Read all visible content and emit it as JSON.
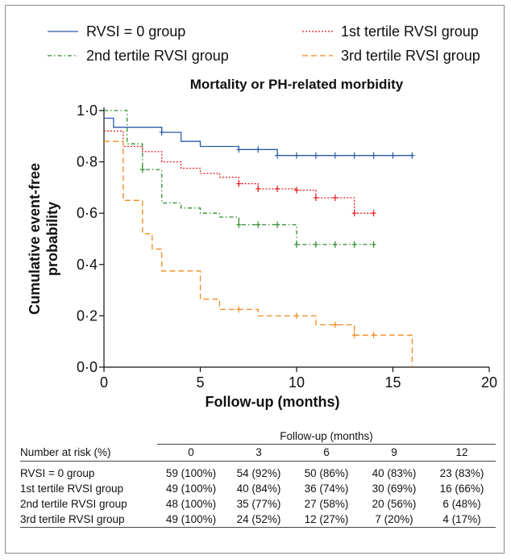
{
  "legend": [
    {
      "label": "RVSI = 0 group",
      "color": "#2a5aa8",
      "dash": "solid"
    },
    {
      "label": "1st tertile RVSI group",
      "color": "#e41a1c",
      "dash": "dotted"
    },
    {
      "label": "2nd tertile RVSI group",
      "color": "#2e8b2e",
      "dash": "dashdot"
    },
    {
      "label": "3rd tertile RVSI group",
      "color": "#f08a1e",
      "dash": "dashed"
    }
  ],
  "chart_data": {
    "type": "line",
    "title": "Mortality or PH-related morbidity",
    "xlabel": "Follow-up (months)",
    "ylabel": "Cumulative event-free probability",
    "xlim": [
      0,
      20
    ],
    "ylim": [
      0,
      1
    ],
    "x_ticks": [
      0,
      5,
      10,
      15,
      20
    ],
    "x_tick_labels": [
      "0",
      "5",
      "10",
      "15",
      "20"
    ],
    "y_ticks": [
      0,
      0.2,
      0.4,
      0.6,
      0.8,
      1.0
    ],
    "y_tick_labels": [
      "0·0",
      "0·2",
      "0·4",
      "0·6",
      "0·8",
      "1·0"
    ],
    "grid": false,
    "legend_position": "top",
    "series": [
      {
        "name": "RVSI = 0 group",
        "color": "#2a5aa8",
        "dash": "solid",
        "steps": [
          [
            0,
            0.97
          ],
          [
            0.5,
            0.97
          ],
          [
            0.5,
            0.935
          ],
          [
            3,
            0.935
          ],
          [
            3,
            0.915
          ],
          [
            4,
            0.915
          ],
          [
            4,
            0.88
          ],
          [
            5,
            0.88
          ],
          [
            5,
            0.86
          ],
          [
            7,
            0.86
          ],
          [
            7,
            0.848
          ],
          [
            9,
            0.848
          ],
          [
            9,
            0.825
          ],
          [
            16,
            0.825
          ]
        ],
        "censors": [
          [
            3,
            0.915
          ],
          [
            7,
            0.848
          ],
          [
            8,
            0.848
          ],
          [
            9,
            0.825
          ],
          [
            10,
            0.825
          ],
          [
            11,
            0.825
          ],
          [
            12,
            0.825
          ],
          [
            13,
            0.825
          ],
          [
            14,
            0.825
          ],
          [
            15,
            0.825
          ],
          [
            16,
            0.825
          ]
        ]
      },
      {
        "name": "1st tertile RVSI group",
        "color": "#e41a1c",
        "dash": "dotted",
        "steps": [
          [
            0,
            0.92
          ],
          [
            1,
            0.92
          ],
          [
            1,
            0.86
          ],
          [
            2,
            0.86
          ],
          [
            2,
            0.84
          ],
          [
            3,
            0.84
          ],
          [
            3,
            0.8
          ],
          [
            4,
            0.8
          ],
          [
            4,
            0.775
          ],
          [
            5,
            0.775
          ],
          [
            5,
            0.755
          ],
          [
            6,
            0.755
          ],
          [
            6,
            0.74
          ],
          [
            7,
            0.74
          ],
          [
            7,
            0.715
          ],
          [
            8,
            0.715
          ],
          [
            8,
            0.695
          ],
          [
            10,
            0.695
          ],
          [
            10,
            0.69
          ],
          [
            11,
            0.69
          ],
          [
            11,
            0.66
          ],
          [
            13,
            0.66
          ],
          [
            13,
            0.6
          ],
          [
            14,
            0.6
          ]
        ],
        "censors": [
          [
            7,
            0.715
          ],
          [
            8,
            0.695
          ],
          [
            9,
            0.695
          ],
          [
            10,
            0.69
          ],
          [
            11,
            0.66
          ],
          [
            12,
            0.66
          ],
          [
            13,
            0.6
          ],
          [
            14,
            0.6
          ]
        ]
      },
      {
        "name": "2nd tertile RVSI group",
        "color": "#2e8b2e",
        "dash": "dashdot",
        "steps": [
          [
            0,
            1.0
          ],
          [
            1.2,
            1.0
          ],
          [
            1.2,
            0.87
          ],
          [
            2,
            0.87
          ],
          [
            2,
            0.77
          ],
          [
            3,
            0.77
          ],
          [
            3,
            0.64
          ],
          [
            4,
            0.64
          ],
          [
            4,
            0.62
          ],
          [
            5,
            0.62
          ],
          [
            5,
            0.6
          ],
          [
            6,
            0.6
          ],
          [
            6,
            0.585
          ],
          [
            7,
            0.585
          ],
          [
            7,
            0.555
          ],
          [
            10,
            0.555
          ],
          [
            10,
            0.478
          ],
          [
            14,
            0.478
          ]
        ],
        "censors": [
          [
            2,
            0.77
          ],
          [
            7,
            0.555
          ],
          [
            8,
            0.555
          ],
          [
            9,
            0.555
          ],
          [
            10,
            0.478
          ],
          [
            11,
            0.478
          ],
          [
            12,
            0.478
          ],
          [
            13,
            0.478
          ],
          [
            14,
            0.478
          ]
        ]
      },
      {
        "name": "3rd tertile RVSI group",
        "color": "#f08a1e",
        "dash": "dashed",
        "steps": [
          [
            0,
            0.88
          ],
          [
            1,
            0.88
          ],
          [
            1,
            0.65
          ],
          [
            2,
            0.65
          ],
          [
            2,
            0.52
          ],
          [
            2.5,
            0.52
          ],
          [
            2.5,
            0.46
          ],
          [
            3,
            0.46
          ],
          [
            3,
            0.375
          ],
          [
            5,
            0.375
          ],
          [
            5,
            0.265
          ],
          [
            6,
            0.265
          ],
          [
            6,
            0.225
          ],
          [
            8,
            0.225
          ],
          [
            8,
            0.2
          ],
          [
            11,
            0.2
          ],
          [
            11,
            0.165
          ],
          [
            13,
            0.165
          ],
          [
            13,
            0.125
          ],
          [
            16,
            0.125
          ],
          [
            16,
            0.0
          ]
        ],
        "censors": [
          [
            7,
            0.225
          ],
          [
            10,
            0.2
          ],
          [
            12,
            0.165
          ],
          [
            13,
            0.125
          ],
          [
            14,
            0.125
          ]
        ]
      }
    ]
  },
  "risk_table": {
    "header_title": "Follow-up (months)",
    "row_header": "Number at risk (%)",
    "columns": [
      "0",
      "3",
      "6",
      "9",
      "12"
    ],
    "rows": [
      {
        "label": "RVSI = 0 group",
        "values": [
          "59 (100%)",
          "54 (92%)",
          "50 (86%)",
          "40 (83%)",
          "23 (83%)"
        ]
      },
      {
        "label": "1st tertile RVSI group",
        "values": [
          "49 (100%)",
          "40 (84%)",
          "36 (74%)",
          "30 (69%)",
          "16 (66%)"
        ]
      },
      {
        "label": "2nd tertile RVSI group",
        "values": [
          "48 (100%)",
          "35 (77%)",
          "27 (58%)",
          "20 (56%)",
          "6 (48%)"
        ]
      },
      {
        "label": "3rd tertile RVSI group",
        "values": [
          "49 (100%)",
          "24 (52%)",
          "12 (27%)",
          "7 (20%)",
          "4 (17%)"
        ]
      }
    ]
  }
}
